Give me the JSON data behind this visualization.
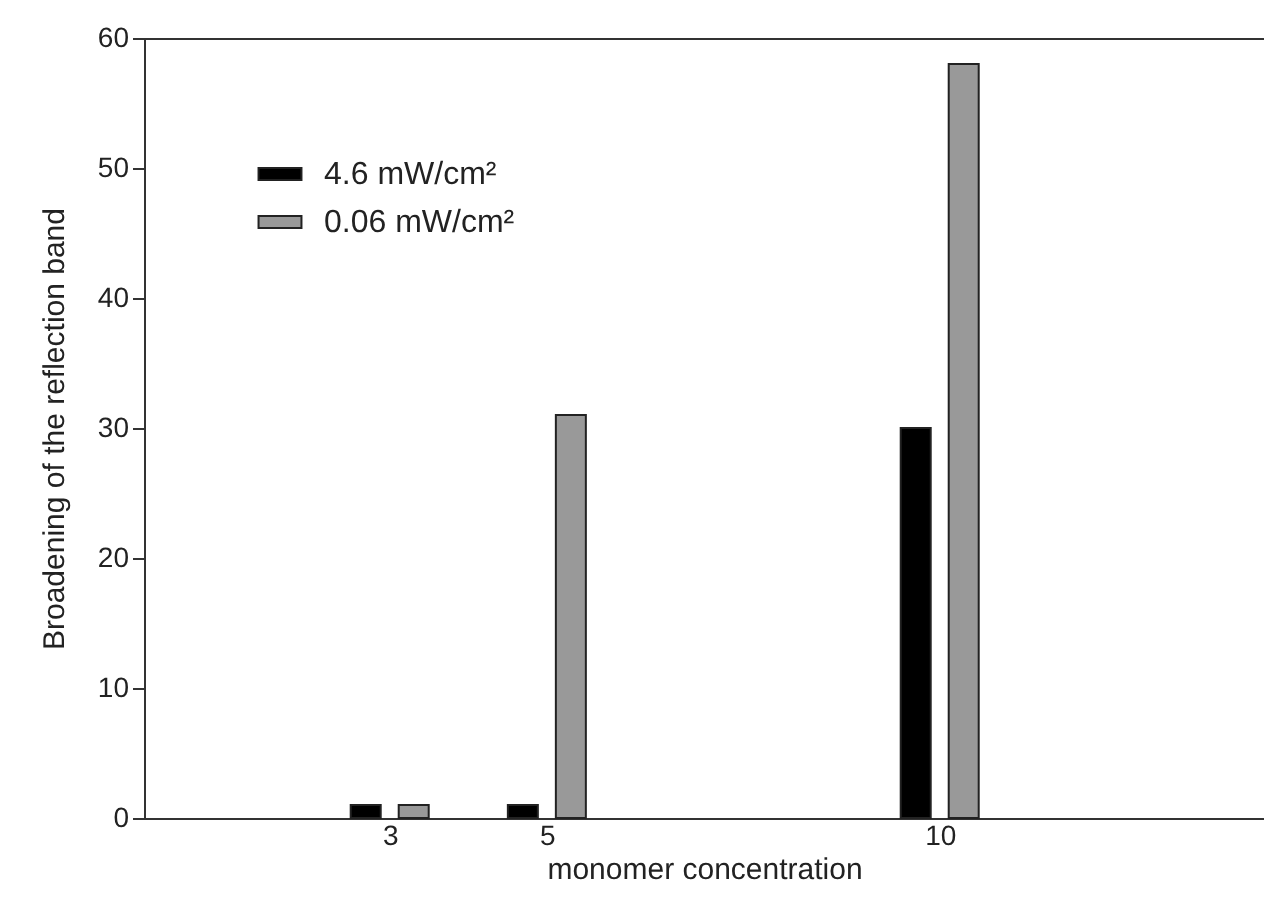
{
  "chart_data": {
    "type": "bar",
    "xlabel": "monomer concentration",
    "ylabel": "Broadening of the reflection band",
    "x": [
      3,
      5,
      10
    ],
    "xlim": [
      0,
      14
    ],
    "xticks": [
      3,
      5,
      10
    ],
    "ylim": [
      0,
      60
    ],
    "yticks": [
      0,
      10,
      20,
      30,
      40,
      50,
      60
    ],
    "series": [
      {
        "name": "4.6 mW/cm²",
        "color": "#000000",
        "values": [
          1,
          1,
          30
        ]
      },
      {
        "name": "0.06 mW/cm²",
        "color": "#999999",
        "values": [
          1,
          31,
          58
        ]
      }
    ],
    "legend": "top left",
    "grid": false
  }
}
